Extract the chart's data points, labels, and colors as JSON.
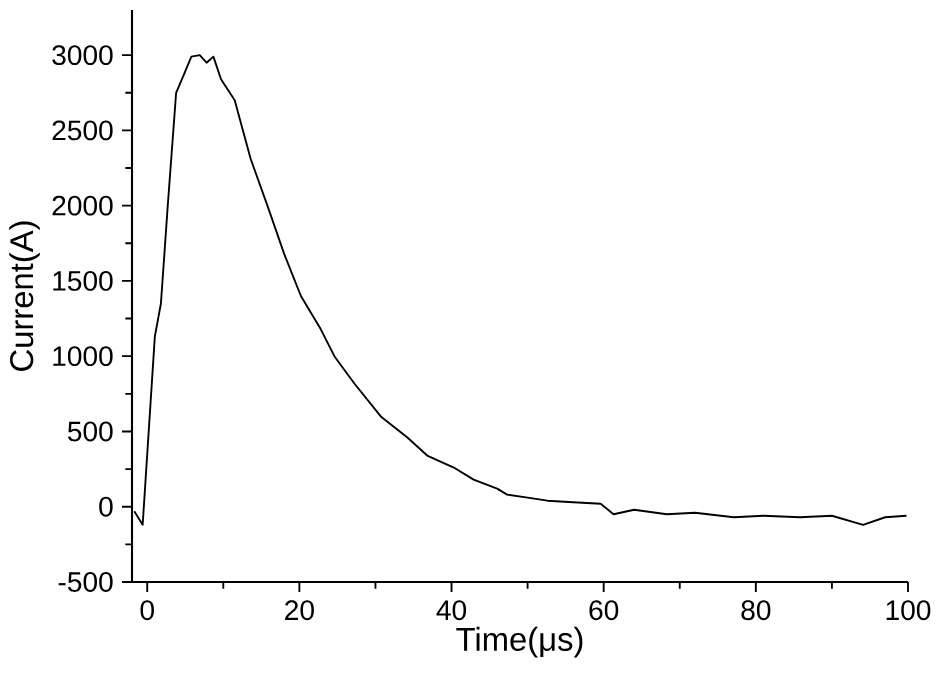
{
  "chart_data": {
    "type": "line",
    "xlabel": "Time(μs)",
    "ylabel": "Current(A)",
    "xlim": [
      -2,
      100
    ],
    "ylim": [
      -500,
      3300
    ],
    "xticks": [
      0,
      20,
      40,
      60,
      80,
      100
    ],
    "yticks": [
      -500,
      0,
      500,
      1000,
      1500,
      2000,
      2500,
      3000
    ],
    "marker": "none",
    "line_style": "solid",
    "series": [
      {
        "color": "#000000",
        "x": [
          -1.7,
          -0.6,
          1.0,
          1.8,
          2.7,
          3.8,
          4.9,
          5.8,
          6.9,
          7.8,
          8.7,
          9.7,
          11.5,
          13.6,
          15.8,
          18.0,
          20.2,
          22.8,
          24.6,
          27.2,
          30.7,
          34.2,
          36.8,
          40.3,
          42.9,
          46.0,
          47.3,
          50.0,
          52.6,
          56.0,
          59.6,
          61.3,
          64.0,
          68.3,
          72.0,
          77.1,
          81.0,
          85.8,
          90.0,
          94.1,
          97.0,
          99.8
        ],
        "values": [
          -30,
          -120,
          1130,
          1350,
          2000,
          2750,
          2880,
          2990,
          3000,
          2950,
          2990,
          2840,
          2700,
          2310,
          2000,
          1680,
          1400,
          1180,
          1000,
          820,
          600,
          460,
          340,
          260,
          180,
          120,
          80,
          60,
          40,
          30,
          20,
          -50,
          -20,
          -50,
          -40,
          -70,
          -60,
          -70,
          -60,
          -120,
          -70,
          -60
        ]
      }
    ]
  }
}
